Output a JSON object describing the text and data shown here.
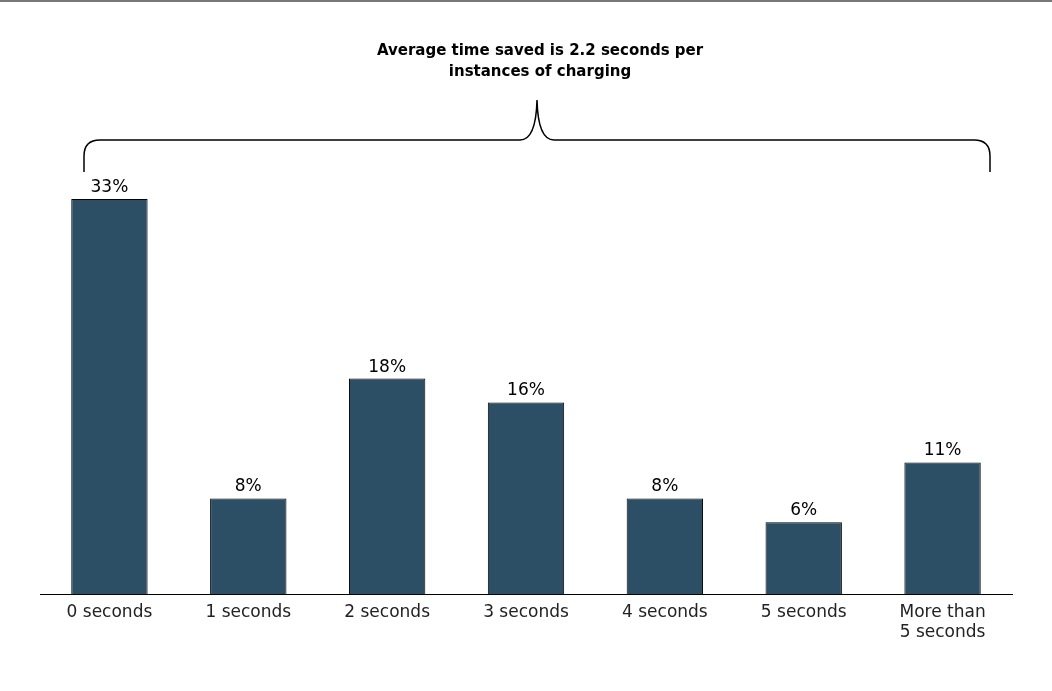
{
  "chart_data": {
    "type": "bar",
    "title": "Average time saved is 2.2 seconds per instances of charging",
    "categories": [
      "0 seconds",
      "1 seconds",
      "2 seconds",
      "3 seconds",
      "4 seconds",
      "5 seconds",
      "More than 5 seconds"
    ],
    "values": [
      33,
      8,
      18,
      16,
      8,
      6,
      11
    ],
    "color": "#2d4f66",
    "value_labels": [
      "33%",
      "8%",
      "18%",
      "16%",
      "8%",
      "6%",
      "11%"
    ],
    "grid": false,
    "legend": false
  }
}
